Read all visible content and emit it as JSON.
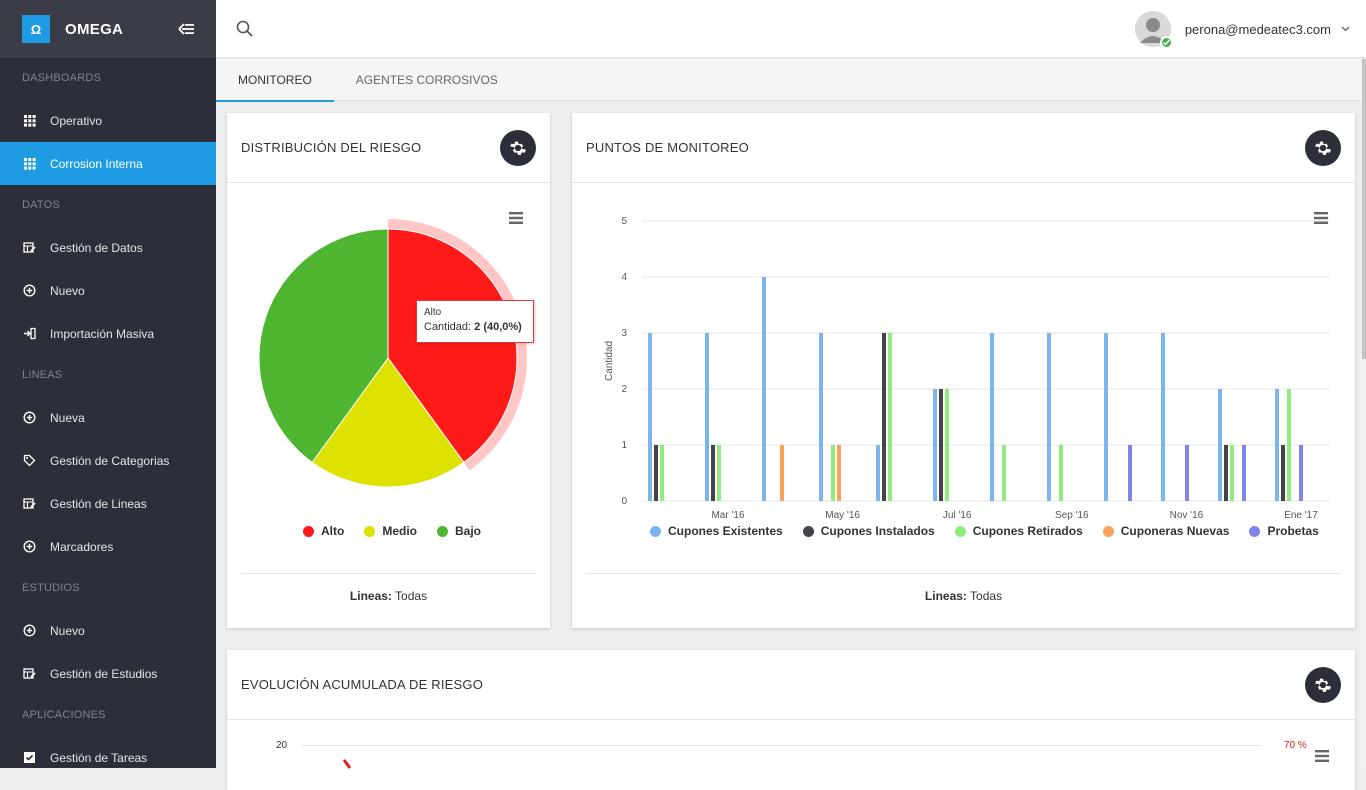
{
  "app": {
    "logo_letter": "Ω",
    "name": "OMEGA"
  },
  "sidebar": {
    "sections": [
      {
        "title": "DASHBOARDS",
        "items": [
          {
            "label": "Operativo",
            "icon": "grid-icon",
            "active": false
          },
          {
            "label": "Corrosion Interna",
            "icon": "grid-icon",
            "active": true
          }
        ]
      },
      {
        "title": "DATOS",
        "items": [
          {
            "label": "Gestión de Datos",
            "icon": "edit-table-icon"
          },
          {
            "label": "Nuevo",
            "icon": "plus-circle-icon"
          },
          {
            "label": "Importación Masiva",
            "icon": "import-icon"
          }
        ]
      },
      {
        "title": "LINEAS",
        "items": [
          {
            "label": "Nueva",
            "icon": "plus-circle-icon"
          },
          {
            "label": "Gestión de Categorias",
            "icon": "tag-icon"
          },
          {
            "label": "Gestión de Lineas",
            "icon": "edit-table-icon"
          },
          {
            "label": "Marcadores",
            "icon": "plus-circle-icon"
          }
        ]
      },
      {
        "title": "ESTUDIOS",
        "items": [
          {
            "label": "Nuevo",
            "icon": "plus-circle-icon"
          },
          {
            "label": "Gestión de Estudios",
            "icon": "edit-table-icon"
          }
        ]
      },
      {
        "title": "APLICACIONES",
        "items": [
          {
            "label": "Gestión de Tareas",
            "icon": "checkbox-icon"
          }
        ]
      }
    ]
  },
  "topbar": {
    "user_email": "perona@medeatec3.com"
  },
  "tabs": [
    {
      "label": "MONITOREO",
      "active": true
    },
    {
      "label": "AGENTES CORROSIVOS",
      "active": false
    }
  ],
  "risk_card": {
    "title": "DISTRIBUCIÓN DEL RIESGO",
    "footer_label": "Lineas:",
    "footer_value": "Todas",
    "tooltip": {
      "name": "Alto",
      "label": "Cantidad:",
      "value": "2 (40,0%)"
    }
  },
  "monitor_card": {
    "title": "PUNTOS DE MONITOREO",
    "footer_label": "Lineas:",
    "footer_value": "Todas"
  },
  "evolution_card": {
    "title": "EVOLUCIÓN ACUMULADA DE RIESGO",
    "y_tick": "20",
    "y2_tick": "70 %"
  },
  "chart_data": [
    {
      "type": "pie",
      "slices": [
        {
          "label": "Alto",
          "value": 2,
          "color": "#ff1a1a"
        },
        {
          "label": "Medio",
          "value": 1,
          "color": "#dde200"
        },
        {
          "label": "Bajo",
          "value": 2,
          "color": "#4eb531"
        }
      ]
    },
    {
      "type": "bar",
      "ylabel": "Cantidad",
      "ylim": [
        0,
        5
      ],
      "y_ticks": [
        "0",
        "1",
        "2",
        "3",
        "4",
        "5"
      ],
      "x_tick_labels": [
        "Mar '16",
        "May '16",
        "Jul '16",
        "Sep '16",
        "Nov '16",
        "Ene '17"
      ],
      "series": [
        {
          "name": "Cupones Existentes",
          "color": "#7cb5ec",
          "values": [
            3,
            3,
            4,
            3,
            1,
            2,
            3,
            3,
            3,
            3,
            2,
            2
          ]
        },
        {
          "name": "Cupones Instalados",
          "color": "#434348",
          "values": [
            1,
            1,
            0,
            0,
            3,
            2,
            0,
            0,
            0,
            0,
            1,
            1
          ]
        },
        {
          "name": "Cupones Retirados",
          "color": "#90ed7d",
          "values": [
            1,
            1,
            0,
            1,
            3,
            2,
            1,
            1,
            0,
            0,
            1,
            2
          ]
        },
        {
          "name": "Cuponeras Nuevas",
          "color": "#f7a35c",
          "values": [
            0,
            0,
            1,
            1,
            0,
            0,
            0,
            0,
            0,
            0,
            0,
            0
          ]
        },
        {
          "name": "Probetas",
          "color": "#8085e9",
          "values": [
            0,
            0,
            0,
            0,
            0,
            0,
            0,
            0,
            1,
            1,
            1,
            1
          ]
        }
      ]
    }
  ]
}
